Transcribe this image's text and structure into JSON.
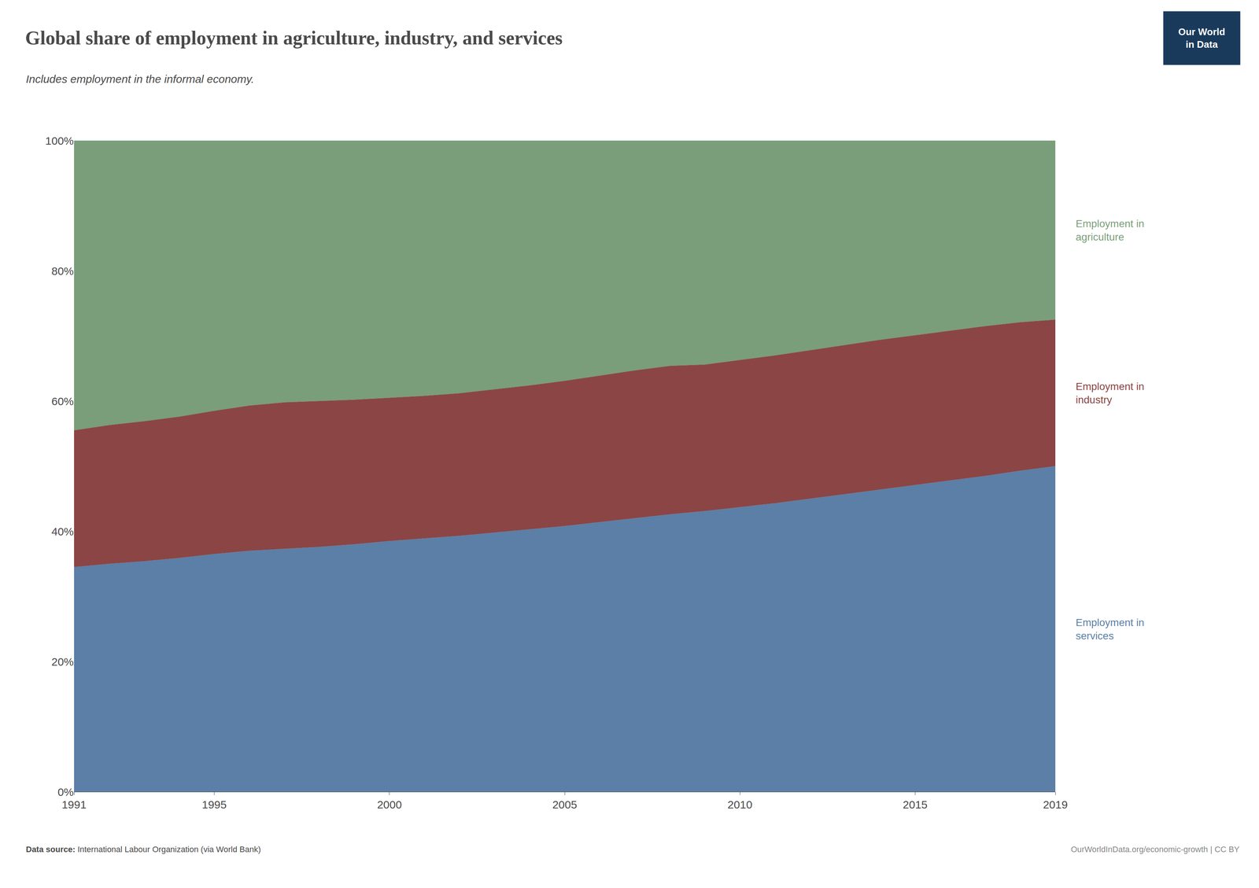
{
  "chart_data": {
    "type": "stacked_area",
    "title": "Global share of employment in agriculture, industry, and services",
    "subtitle": "Includes employment in the informal economy.",
    "x": [
      1991,
      1992,
      1993,
      1994,
      1995,
      1996,
      1997,
      1998,
      1999,
      2000,
      2001,
      2002,
      2003,
      2004,
      2005,
      2006,
      2007,
      2008,
      2009,
      2010,
      2011,
      2012,
      2013,
      2014,
      2015,
      2016,
      2017,
      2018,
      2019
    ],
    "series": [
      {
        "name": "Employment in\nservices",
        "color": "#5b7fa6",
        "values": [
          34.5,
          35.0,
          35.4,
          35.9,
          36.5,
          37.0,
          37.3,
          37.6,
          38.0,
          38.5,
          38.9,
          39.3,
          39.8,
          40.3,
          40.8,
          41.4,
          42.0,
          42.6,
          43.1,
          43.7,
          44.3,
          45.0,
          45.7,
          46.4,
          47.1,
          47.8,
          48.5,
          49.3,
          50.0
        ]
      },
      {
        "name": "Employment in\nindustry",
        "color": "#8b4545",
        "values": [
          21.0,
          21.3,
          21.5,
          21.7,
          22.0,
          22.3,
          22.5,
          22.4,
          22.2,
          22.0,
          21.9,
          21.9,
          22.0,
          22.1,
          22.3,
          22.5,
          22.7,
          22.8,
          22.5,
          22.6,
          22.7,
          22.8,
          22.9,
          23.0,
          23.0,
          23.0,
          23.0,
          22.8,
          22.5
        ]
      },
      {
        "name": "Employment in\nagriculture",
        "color": "#7a9e7a",
        "values": [
          44.5,
          43.7,
          43.1,
          42.4,
          41.5,
          40.7,
          40.2,
          40.0,
          39.8,
          39.5,
          39.2,
          38.8,
          38.2,
          37.6,
          36.9,
          36.1,
          35.3,
          34.6,
          34.4,
          33.7,
          33.0,
          32.2,
          31.4,
          30.6,
          29.9,
          29.2,
          28.5,
          27.9,
          27.5
        ]
      }
    ],
    "stacked": true,
    "xlim": [
      1991,
      2019
    ],
    "xticks": [
      1991,
      1995,
      2000,
      2005,
      2010,
      2015,
      2019
    ],
    "ylim": [
      0,
      100
    ],
    "yticks": [
      {
        "value": 0,
        "label": "0%"
      },
      {
        "value": 20,
        "label": "20%"
      },
      {
        "value": 40,
        "label": "40%"
      },
      {
        "value": 60,
        "label": "60%"
      },
      {
        "value": 80,
        "label": "80%"
      },
      {
        "value": 100,
        "label": "100%"
      }
    ],
    "grid": true,
    "legend": "none",
    "text_color": "#4a4a4a",
    "source_label": "Data source: ",
    "source": "International Labour Organization (via World Bank)",
    "footer": "OurWorldInData.org/economic-growth | CC BY",
    "footer_color": "#888888",
    "logo_text": "Our World\nin Data",
    "logo_color": "#1a3a5c"
  }
}
